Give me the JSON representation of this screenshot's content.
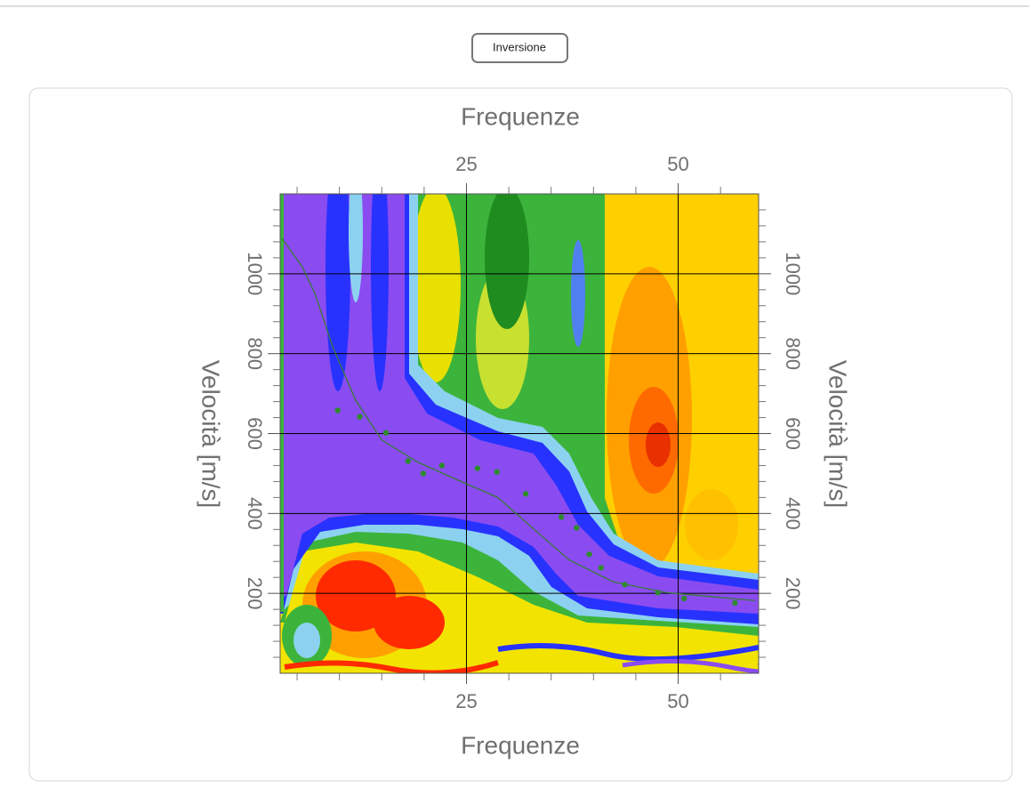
{
  "button": "Inversione",
  "chart_data": {
    "type": "scatter",
    "x_label": "Frequenze",
    "y_label": "Velocità [m/s]",
    "xlim": [
      3,
      59.5
    ],
    "ylim": [
      0,
      1200
    ],
    "xticks": [
      25,
      50
    ],
    "yticks": [
      200,
      400,
      600,
      800,
      1000
    ],
    "xminor": [
      5,
      10,
      15,
      20,
      30,
      35,
      40,
      45,
      55
    ],
    "yminor": [
      40,
      80,
      120,
      160,
      240,
      280,
      320,
      360,
      440,
      480,
      520,
      560,
      640,
      680,
      720,
      760,
      840,
      880,
      920,
      960,
      1040,
      1080,
      1120,
      1160
    ],
    "grid": true,
    "points": {
      "color": "#2e8b2e",
      "x": [
        9.8,
        12.4,
        15.5,
        18.1,
        19.9,
        22.1,
        26.3,
        28.6,
        32.0,
        36.2,
        38.0,
        39.5,
        40.9,
        43.7,
        47.6,
        50.7,
        56.7
      ],
      "y": [
        658,
        642,
        602,
        531,
        500,
        520,
        513,
        504,
        449,
        391,
        364,
        298,
        264,
        222,
        202,
        187,
        176
      ]
    },
    "curve": {
      "color": "#3a7a3a",
      "x": [
        3.2,
        5.6,
        7.1,
        9.2,
        11.9,
        15.0,
        19.2,
        23.4,
        28.7,
        32.9,
        37.1,
        42.3,
        48.6,
        59.1
      ],
      "y": [
        1089,
        1018,
        951,
        818,
        684,
        584,
        529,
        489,
        440,
        362,
        284,
        229,
        202,
        182
      ]
    }
  }
}
